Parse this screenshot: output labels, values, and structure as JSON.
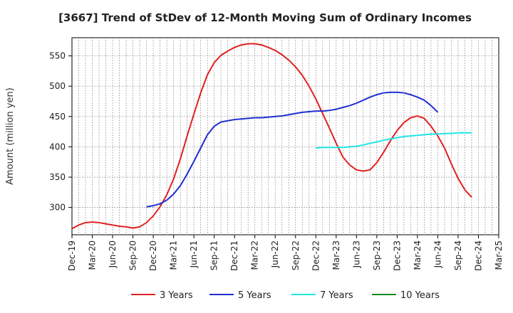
{
  "chart_data": {
    "type": "line",
    "title": "[3667]  Trend of StDev of 12-Month Moving Sum of Ordinary Incomes",
    "ylabel": "Amount (million yen)",
    "xlabel": "",
    "ylim": [
      255,
      580
    ],
    "yticks": [
      300,
      350,
      400,
      450,
      500,
      550
    ],
    "xticks": [
      "Dec-19",
      "Mar-20",
      "Jun-20",
      "Sep-20",
      "Dec-20",
      "Mar-21",
      "Jun-21",
      "Sep-21",
      "Dec-21",
      "Mar-22",
      "Jun-22",
      "Sep-22",
      "Dec-22",
      "Mar-23",
      "Jun-23",
      "Sep-23",
      "Dec-23",
      "Mar-24",
      "Jun-24",
      "Sep-24",
      "Dec-24",
      "Mar-25"
    ],
    "grid": true,
    "legend_position": "bottom",
    "series": [
      {
        "name": "3 Years",
        "color": "#e02020",
        "start_index": 0,
        "values": [
          265,
          271,
          275,
          276,
          275,
          273,
          271,
          269,
          268,
          266,
          268,
          275,
          286,
          301,
          321,
          347,
          380,
          418,
          454,
          489,
          519,
          539,
          551,
          558,
          564,
          568,
          570,
          570,
          568,
          564,
          559,
          552,
          543,
          532,
          518,
          500,
          479,
          455,
          431,
          406,
          383,
          370,
          362,
          360,
          362,
          374,
          391,
          410,
          427,
          440,
          448,
          451,
          447,
          434,
          418,
          398,
          372,
          348,
          329,
          317
        ]
      },
      {
        "name": "5 Years",
        "color": "#1f2fcf",
        "start_index": 11,
        "values": [
          301,
          303,
          306,
          312,
          322,
          336,
          355,
          376,
          398,
          420,
          434,
          441,
          443,
          445,
          446,
          447,
          448,
          448,
          449,
          450,
          451,
          453,
          455,
          457,
          458,
          459,
          459,
          460,
          462,
          465,
          468,
          472,
          477,
          482,
          486,
          489,
          490,
          490,
          489,
          486,
          482,
          477,
          468,
          457
        ]
      },
      {
        "name": "7 Years",
        "color": "#1ee5e5",
        "start_index": 36,
        "values": [
          398,
          399,
          399,
          399,
          399,
          400,
          401,
          403,
          406,
          408,
          411,
          413,
          415,
          417,
          418,
          419,
          420,
          421,
          421,
          422,
          422,
          423,
          423,
          423
        ]
      },
      {
        "name": "10 Years",
        "color": "#1a8a1a",
        "start_index": 0,
        "values": []
      }
    ]
  }
}
